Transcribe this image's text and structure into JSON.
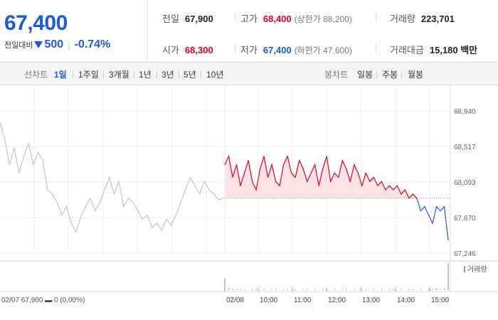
{
  "summary": {
    "price": "67,400",
    "change_label": "전일대비",
    "change_amount": "500",
    "change_sep": "|",
    "change_percent": "-0.74%"
  },
  "stats": {
    "prev_close": {
      "label": "전일",
      "value": "67,900"
    },
    "high": {
      "label": "고가",
      "value": "68,400",
      "sub": "(상한가 88,200)"
    },
    "volume": {
      "label": "거래량",
      "value": "223,701"
    },
    "open": {
      "label": "시가",
      "value": "68,300"
    },
    "low": {
      "label": "저가",
      "value": "67,400",
      "sub": "(하한가 47,600)"
    },
    "turnover": {
      "label": "거래대금",
      "value": "15,180 백만"
    }
  },
  "toolbar": {
    "line_chart_label": "선차트",
    "line_periods": [
      "1일",
      "1주일",
      "3개월",
      "1년",
      "3년",
      "5년",
      "10년"
    ],
    "active_period": "1일",
    "candle_chart_label": "봉차트",
    "candle_periods": [
      "일봉",
      "주봉",
      "월봉"
    ]
  },
  "colors": {
    "up": "#e8002a",
    "down": "#1e5adc",
    "prev_day": "#c4c4c4",
    "up_fill": "#fbdcdc",
    "volume": "#9a9aa8"
  },
  "chart_data": {
    "type": "line",
    "title": "",
    "xlabel": "",
    "ylabel": "",
    "y_ticks": [
      "68,940",
      "68,517",
      "68,093",
      "67,670",
      "67,246"
    ],
    "ylim": [
      67246,
      68940
    ],
    "x_ticks": [
      "02/08",
      "10:00",
      "11:00",
      "12:00",
      "13:00",
      "14:00",
      "15:00"
    ],
    "reference_price": 67900,
    "prev_day_info": "02/07  67,900 ▬ 0 (0.00%)",
    "volume_legend": "거래량",
    "series": [
      {
        "day": "02/07",
        "values": [
          68800,
          68600,
          68300,
          68500,
          68200,
          68400,
          68550,
          68300,
          68450,
          68350,
          68000,
          67950,
          67850,
          67700,
          67800,
          67600,
          67500,
          67680,
          67800,
          67900,
          67750,
          67850,
          68000,
          68150,
          67950,
          68100,
          67800,
          67900,
          67850,
          67750,
          67650,
          67700,
          67550,
          67600,
          67520,
          67650,
          67580,
          67700,
          67850,
          68000,
          68150,
          68050,
          67950,
          68100,
          68000,
          67950,
          67880,
          67900
        ]
      },
      {
        "day": "02/08",
        "values": [
          68300,
          68400,
          68150,
          68300,
          68050,
          68200,
          68350,
          68100,
          68000,
          68250,
          68400,
          68150,
          68300,
          68100,
          68050,
          68300,
          68400,
          68200,
          68150,
          68350,
          68250,
          68100,
          68200,
          68300,
          68050,
          68250,
          68400,
          68100,
          68200,
          68150,
          68350,
          68250,
          68100,
          68300,
          68200,
          68050,
          68200,
          68100,
          68150,
          68050,
          68100,
          68000,
          68050,
          68000,
          68050,
          67950,
          68000,
          67900,
          67950,
          67900,
          67750,
          67800,
          67700,
          67600,
          67800,
          67750,
          67800,
          67400
        ]
      }
    ],
    "volume": {
      "day2": [
        13,
        2,
        1,
        1,
        1,
        1,
        0,
        1,
        1,
        0,
        1,
        0,
        1,
        1,
        0,
        1,
        1,
        0,
        1,
        0,
        1,
        1,
        0,
        1,
        0,
        1,
        1,
        0,
        1,
        0,
        1,
        1,
        0,
        1,
        0,
        1,
        1,
        0,
        1,
        0,
        1,
        0,
        1,
        1,
        0,
        1,
        0,
        1,
        1,
        0,
        1,
        0,
        1,
        1,
        2,
        1,
        2,
        30
      ]
    }
  }
}
